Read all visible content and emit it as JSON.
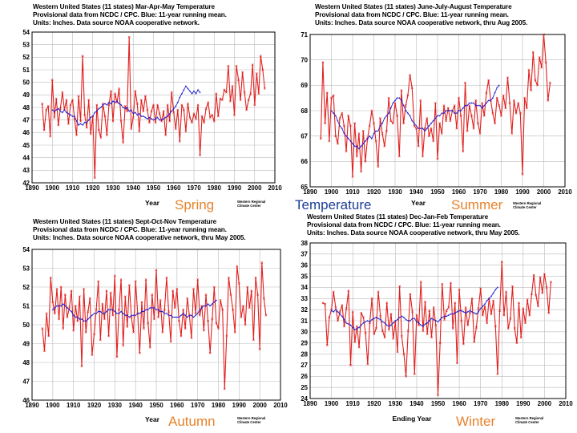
{
  "season_labels": {
    "spring": "Spring",
    "temperature": "Temperature",
    "summer": "Summer",
    "autumn": "Autumn",
    "winter": "Winter"
  },
  "colors": {
    "season_orange": "#e8822a",
    "temperature_blue": "#1c3f94",
    "series_red": "#e0201e",
    "mean_blue": "#2222cc",
    "grid": "#bbbbbb"
  },
  "chart_data": [
    {
      "id": "spring",
      "type": "line",
      "title": [
        "Western United States (11 states) Mar-Apr-May Temperature",
        "Provisional data from NCDC / CPC.  Blue:  11-year running mean.",
        "Units:  Inches.  Data source NOAA  cooperative network."
      ],
      "xlabel": "Year",
      "credit": [
        "Western Regional",
        "Climate Center"
      ],
      "xlim": [
        1890,
        2010
      ],
      "ylim": [
        42,
        54
      ],
      "xticks": [
        1890,
        1900,
        1910,
        1920,
        1930,
        1940,
        1950,
        1960,
        1970,
        1980,
        1990,
        2000,
        2010
      ],
      "yticks": [
        42,
        43,
        44,
        45,
        46,
        47,
        48,
        49,
        50,
        51,
        52,
        53,
        54
      ],
      "grid": true,
      "start_year": 1895,
      "series": [
        {
          "role": "annual",
          "values": [
            48.3,
            46.2,
            47.8,
            48.1,
            45.7,
            50.2,
            47.2,
            48.7,
            46.6,
            47.9,
            49.2,
            47.8,
            48.6,
            46.7,
            48.2,
            48.6,
            47.1,
            45.8,
            48.9,
            46.9,
            52.1,
            47.4,
            46.4,
            48.6,
            45.9,
            47.3,
            42.4,
            48.2,
            46.2,
            45.6,
            48.3,
            47.3,
            45.8,
            48.2,
            49.3,
            46.9,
            49.1,
            48.4,
            49.5,
            46.9,
            45.2,
            48.1,
            47.7,
            53.6,
            46.3,
            47.2,
            49.3,
            48.3,
            46.1,
            48.6,
            47.7,
            48.9,
            47.8,
            46.8,
            47.7,
            48.2,
            46.8,
            48.2,
            47.5,
            46.9,
            47.7,
            45.8,
            48.2,
            46.9,
            49.2,
            47.6,
            46.3,
            47.8,
            45.3,
            48.2,
            47.8,
            46.1,
            48.3,
            47.2,
            46.8,
            47.5,
            47.1,
            48.2,
            44.2,
            47.3,
            46.8,
            47.9,
            48.4,
            47.2,
            47.4,
            46.9,
            49.1,
            47.3,
            48.7,
            48.6,
            49.4,
            49.2,
            51.3,
            48.5,
            49.7,
            47.4,
            51.3,
            50.2,
            48.6,
            50.8,
            49.2,
            47.8,
            48.6,
            49.1,
            51.4,
            48.2,
            50.7,
            49.1,
            52.1,
            51.0,
            49.5
          ]
        },
        {
          "role": "running_mean",
          "name": "11-year running mean",
          "start_year": 1900,
          "values": [
            47.8,
            47.7,
            47.8,
            47.9,
            47.7,
            47.6,
            47.8,
            47.6,
            47.5,
            47.4,
            47.3,
            47.3,
            46.9,
            46.6,
            46.7,
            46.6,
            46.8,
            46.8,
            47.0,
            47.2,
            47.3,
            47.6,
            47.7,
            47.9,
            48.0,
            48.2,
            48.3,
            48.2,
            48.4,
            48.3,
            48.5,
            48.4,
            48.5,
            48.3,
            48.2,
            48.0,
            47.9,
            48.0,
            47.7,
            47.8,
            47.5,
            47.6,
            47.4,
            47.5,
            47.3,
            47.3,
            47.2,
            47.1,
            47.2,
            47.1,
            47.0,
            47.1,
            47.2,
            47.0,
            47.0,
            47.1,
            47.2,
            47.3,
            47.5,
            47.7,
            47.9,
            48.1,
            48.4,
            48.8,
            49.1,
            49.4,
            49.7,
            49.5,
            49.3,
            49.1,
            49.3,
            49.1,
            49.4,
            49.2
          ]
        }
      ]
    },
    {
      "id": "summer",
      "type": "line",
      "title": [
        "Western United States (11 states) June-July-August Temperature",
        "Provisional data from NCDC / CPC.  Blue:  11-year running mean.",
        "Units:  Inches.  Data source NOAA  cooperative network, thru Aug 2005."
      ],
      "xlabel": "Year",
      "credit": [
        "Western Regional",
        "Climate Center"
      ],
      "xlim": [
        1890,
        2010
      ],
      "ylim": [
        65,
        71
      ],
      "xticks": [
        1890,
        1900,
        1910,
        1920,
        1930,
        1940,
        1950,
        1960,
        1970,
        1980,
        1990,
        2000,
        2010
      ],
      "yticks": [
        65,
        66,
        67,
        68,
        69,
        70,
        71
      ],
      "grid": true,
      "start_year": 1895,
      "series": [
        {
          "role": "annual",
          "values": [
            66.9,
            69.9,
            67.5,
            68.7,
            66.8,
            68.5,
            68.6,
            67.0,
            66.7,
            67.7,
            67.9,
            67.4,
            66.4,
            67.8,
            67.4,
            65.4,
            67.5,
            66.2,
            67.1,
            65.6,
            67.2,
            66.0,
            66.9,
            67.4,
            68.0,
            67.5,
            66.8,
            65.8,
            67.7,
            67.1,
            66.6,
            67.2,
            68.5,
            67.6,
            67.5,
            68.3,
            67.8,
            66.2,
            68.8,
            67.5,
            68.2,
            68.6,
            69.4,
            68.9,
            67.4,
            67.3,
            66.6,
            68.4,
            66.2,
            67.3,
            67.7,
            67.0,
            67.3,
            66.8,
            68.3,
            66.1,
            67.5,
            67.1,
            68.2,
            67.6,
            68.1,
            67.6,
            68.0,
            68.2,
            67.3,
            68.5,
            67.8,
            66.4,
            69.1,
            67.2,
            68.2,
            67.8,
            67.3,
            68.4,
            67.5,
            67.1,
            68.3,
            67.8,
            68.7,
            69.2,
            68.4,
            67.9,
            67.5,
            68.5,
            68.2,
            67.8,
            68.6,
            68.1,
            69.3,
            68.3,
            67.1,
            68.4,
            67.9,
            68.3,
            67.9,
            65.5,
            68.5,
            68.1,
            69.6,
            68.8,
            70.3,
            69.2,
            69.0,
            70.1,
            69.7,
            71.0,
            69.9,
            68.4,
            69.1
          ]
        },
        {
          "role": "running_mean",
          "name": "11-year running mean",
          "start_year": 1900,
          "values": [
            68.0,
            67.9,
            67.8,
            67.6,
            67.4,
            67.3,
            67.1,
            67.0,
            66.9,
            66.8,
            66.7,
            66.6,
            66.6,
            66.5,
            66.6,
            66.7,
            66.8,
            66.9,
            67.0,
            66.9,
            67.1,
            67.2,
            67.2,
            67.4,
            67.5,
            67.7,
            67.8,
            67.9,
            68.1,
            68.3,
            68.4,
            68.5,
            68.5,
            68.4,
            68.2,
            68.0,
            67.9,
            67.8,
            67.6,
            67.5,
            67.4,
            67.3,
            67.3,
            67.3,
            67.2,
            67.3,
            67.4,
            67.5,
            67.6,
            67.7,
            67.8,
            67.8,
            67.9,
            67.9,
            68.0,
            68.0,
            68.0,
            68.0,
            67.9,
            67.9,
            68.0,
            68.0,
            68.1,
            68.2,
            68.2,
            68.3,
            68.3,
            68.3,
            68.2,
            68.2,
            68.2,
            68.1,
            68.2,
            68.3,
            68.4,
            68.4,
            68.5,
            68.7,
            68.9,
            69.0
          ]
        }
      ]
    },
    {
      "id": "autumn",
      "type": "line",
      "title": [
        "Western United States (11 states) Sept-Oct-Nov Temperature",
        "Provisional data from NCDC / CPC.  Blue:  11-year running mean.",
        "Units:  Inches.  Data source NOAA  cooperative network, thru May 2005."
      ],
      "xlabel": "Year",
      "credit": [
        "Western Regional",
        "Climate Center"
      ],
      "xlim": [
        1890,
        2010
      ],
      "ylim": [
        46,
        54
      ],
      "xticks": [
        1890,
        1900,
        1910,
        1920,
        1930,
        1940,
        1950,
        1960,
        1970,
        1980,
        1990,
        2000,
        2010
      ],
      "yticks": [
        46,
        47,
        48,
        49,
        50,
        51,
        52,
        53,
        54
      ],
      "grid": true,
      "start_year": 1895,
      "series": [
        {
          "role": "annual",
          "values": [
            49.8,
            48.6,
            50.6,
            49.4,
            52.5,
            51.2,
            50.6,
            51.9,
            50.3,
            52.0,
            49.8,
            51.6,
            50.4,
            50.9,
            51.8,
            49.7,
            51.0,
            50.2,
            51.5,
            47.8,
            51.9,
            49.6,
            50.7,
            51.4,
            48.4,
            49.5,
            50.8,
            52.3,
            49.2,
            51.1,
            50.3,
            51.8,
            49.4,
            51.7,
            50.5,
            52.6,
            48.3,
            50.8,
            52.4,
            48.9,
            51.5,
            49.9,
            52.1,
            50.4,
            49.6,
            52.3,
            50.6,
            48.5,
            51.2,
            49.8,
            52.4,
            50.1,
            48.8,
            51.6,
            50.3,
            52.9,
            50.4,
            51.3,
            49.6,
            50.8,
            52.5,
            50.7,
            49.1,
            51.8,
            50.9,
            51.9,
            50.2,
            49.4,
            50.8,
            49.8,
            51.4,
            50.5,
            49.3,
            51.9,
            50.6,
            52.4,
            50.5,
            51.0,
            49.7,
            51.6,
            50.2,
            48.5,
            50.3,
            52.0,
            50.1,
            49.8,
            51.3,
            50.8,
            46.6,
            49.4,
            52.5,
            51.6,
            50.8,
            49.6,
            53.1,
            52.2,
            50.4,
            51.0,
            50.0,
            52.0,
            50.9,
            51.8,
            49.2,
            52.5,
            51.6,
            48.7,
            53.3,
            51.4,
            50.5
          ]
        },
        {
          "role": "running_mean",
          "name": "11-year running mean",
          "start_year": 1900,
          "values": [
            50.8,
            50.9,
            51.0,
            51.0,
            51.0,
            51.1,
            51.0,
            50.9,
            50.8,
            50.7,
            50.5,
            50.4,
            50.4,
            50.3,
            50.3,
            50.2,
            50.2,
            50.3,
            50.4,
            50.5,
            50.6,
            50.6,
            50.7,
            50.7,
            50.6,
            50.6,
            50.7,
            50.8,
            50.8,
            50.8,
            50.7,
            50.6,
            50.6,
            50.7,
            50.6,
            50.5,
            50.5,
            50.4,
            50.5,
            50.5,
            50.5,
            50.6,
            50.6,
            50.7,
            50.7,
            50.8,
            50.8,
            50.9,
            50.9,
            50.9,
            50.8,
            50.8,
            50.7,
            50.7,
            50.6,
            50.6,
            50.5,
            50.5,
            50.4,
            50.4,
            50.4,
            50.4,
            50.5,
            50.6,
            50.5,
            50.4,
            50.5,
            50.5,
            50.4,
            50.5,
            50.6,
            50.8,
            50.9,
            51.0,
            51.0,
            51.1,
            51.0,
            51.1,
            51.2,
            51.3
          ]
        }
      ]
    },
    {
      "id": "winter",
      "type": "line",
      "title": [
        "Western United States (11 states) Dec-Jan-Feb Temperature",
        "Provisional data from NCDC / CPC.  Blue:  11-year running mean.",
        "Units:  Inches.  Data source NOAA  cooperative network, thru May 2005."
      ],
      "xlabel": "Ending Year",
      "credit": [
        "Western Regional",
        "Climate Center"
      ],
      "xlim": [
        1890,
        2010
      ],
      "ylim": [
        24,
        38
      ],
      "xticks": [
        1890,
        1900,
        1910,
        1920,
        1930,
        1940,
        1950,
        1960,
        1970,
        1980,
        1990,
        2000,
        2010
      ],
      "yticks": [
        24,
        25,
        26,
        27,
        28,
        29,
        30,
        31,
        32,
        33,
        34,
        35,
        36,
        37,
        38
      ],
      "grid": true,
      "start_year": 1896,
      "series": [
        {
          "role": "annual",
          "values": [
            32.6,
            32.5,
            28.8,
            31.3,
            32.0,
            33.6,
            32.2,
            31.0,
            31.8,
            32.4,
            30.5,
            32.1,
            33.7,
            27.0,
            31.8,
            29.1,
            30.5,
            28.6,
            31.7,
            31.3,
            29.9,
            27.1,
            30.8,
            33.0,
            29.8,
            30.3,
            33.6,
            31.4,
            30.1,
            29.5,
            32.6,
            30.2,
            31.6,
            29.4,
            30.9,
            28.2,
            34.1,
            29.6,
            28.0,
            26.0,
            30.1,
            33.4,
            31.8,
            26.2,
            31.5,
            30.6,
            34.5,
            30.1,
            32.7,
            29.8,
            31.9,
            29.5,
            32.2,
            30.6,
            24.3,
            29.0,
            34.3,
            31.1,
            31.9,
            32.2,
            34.4,
            30.3,
            32.6,
            27.2,
            33.8,
            31.0,
            28.9,
            32.2,
            30.6,
            31.7,
            33.0,
            29.1,
            30.4,
            32.1,
            33.9,
            31.5,
            32.3,
            30.8,
            33.0,
            31.6,
            32.8,
            30.5,
            26.2,
            31.9,
            36.3,
            31.5,
            33.6,
            30.3,
            31.2,
            34.1,
            30.3,
            29.0,
            32.6,
            29.5,
            32.1,
            30.8,
            32.9,
            31.5,
            33.4,
            35.1,
            33.3,
            32.3,
            34.9,
            33.5,
            35.2,
            34.0,
            31.7,
            34.5
          ]
        },
        {
          "role": "running_mean",
          "name": "11-year running mean",
          "start_year": 1900,
          "values": [
            31.9,
            31.8,
            32.0,
            31.8,
            31.6,
            31.4,
            31.1,
            30.8,
            30.7,
            30.6,
            30.4,
            30.2,
            30.3,
            30.4,
            30.6,
            30.8,
            30.9,
            31.0,
            30.9,
            31.1,
            31.2,
            31.3,
            31.2,
            31.1,
            30.9,
            30.8,
            30.6,
            30.5,
            30.6,
            30.8,
            31.0,
            31.1,
            31.3,
            31.4,
            31.3,
            31.1,
            31.0,
            31.0,
            31.2,
            31.2,
            30.9,
            30.8,
            30.6,
            30.5,
            30.7,
            30.8,
            31.0,
            31.2,
            31.1,
            31.0,
            30.9,
            31.1,
            31.3,
            31.4,
            31.4,
            31.5,
            31.6,
            31.6,
            31.7,
            31.8,
            31.9,
            31.9,
            31.8,
            31.7,
            31.8,
            31.9,
            31.8,
            31.7,
            31.6,
            31.8,
            32.1,
            32.3,
            32.5,
            32.8,
            33.0,
            33.2,
            33.5,
            33.8,
            34.0
          ]
        }
      ]
    }
  ]
}
